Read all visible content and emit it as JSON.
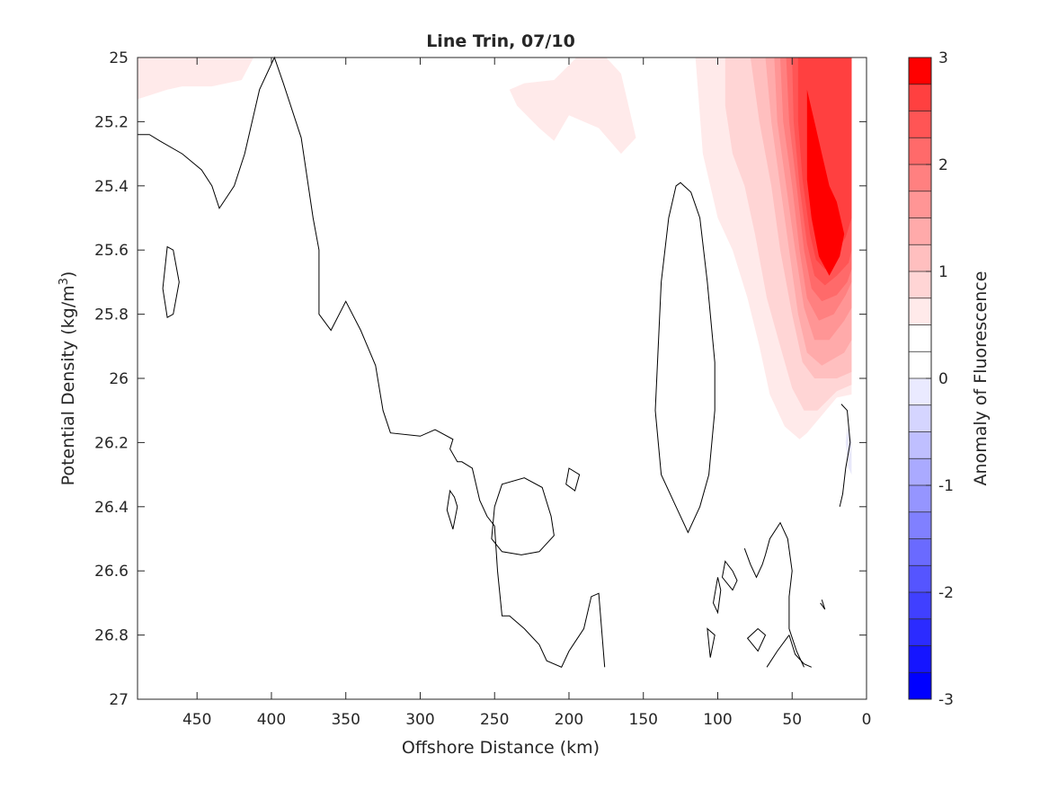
{
  "chart_data": {
    "type": "contour",
    "title": "Line Trin, 07/10",
    "xlabel": "Offshore Distance (km)",
    "ylabel_main": "Potential Density (kg/m",
    "ylabel_sup": "3",
    "ylabel_close": ")",
    "colorbar_label": "Anomaly of Fluorescence",
    "x_reversed": true,
    "y_reversed": true,
    "xlim": [
      490,
      0
    ],
    "ylim": [
      25,
      27
    ],
    "xticks": [
      450,
      400,
      350,
      300,
      250,
      200,
      150,
      100,
      50,
      0
    ],
    "xtick_labels": [
      "450",
      "400",
      "350",
      "300",
      "250",
      "200",
      "150",
      "100",
      "50",
      "0"
    ],
    "yticks": [
      25,
      25.2,
      25.4,
      25.6,
      25.8,
      26,
      26.2,
      26.4,
      26.6,
      26.8,
      27
    ],
    "ytick_labels": [
      "25",
      "25.2",
      "25.4",
      "25.6",
      "25.8",
      "26",
      "26.2",
      "26.4",
      "26.6",
      "26.8",
      "27"
    ],
    "colorbar": {
      "range": [
        -3,
        3
      ],
      "ticks": [
        -3,
        -2,
        -1,
        0,
        1,
        2,
        3
      ],
      "tick_labels": [
        "-3",
        "-2",
        "-1",
        "0",
        "1",
        "2",
        "3"
      ],
      "levels": 24,
      "colors": [
        "#0000ff",
        "#1515ff",
        "#2b2bff",
        "#4040ff",
        "#5555ff",
        "#6a6aff",
        "#8080ff",
        "#9595ff",
        "#aaaaff",
        "#bfbfff",
        "#d5d5ff",
        "#eaeaff",
        "#ffffff",
        "#ffffff",
        "#ffeaea",
        "#ffd5d5",
        "#ffbfbf",
        "#ffaaaa",
        "#ff9595",
        "#ff8080",
        "#ff6a6a",
        "#ff5555",
        "#ff4040",
        "#ff0000"
      ]
    },
    "filled_regions": [
      {
        "level": 0.25,
        "color": "#ffeaea",
        "points": [
          [
            490,
            25.13
          ],
          [
            470,
            25.1
          ],
          [
            460,
            25.09
          ],
          [
            440,
            25.09
          ],
          [
            420,
            25.07
          ],
          [
            412,
            25.0
          ],
          [
            490,
            25.0
          ]
        ]
      },
      {
        "level": 0.25,
        "color": "#ffeaea",
        "points": [
          [
            240,
            25.1
          ],
          [
            230,
            25.08
          ],
          [
            210,
            25.07
          ],
          [
            195,
            25.0
          ],
          [
            175,
            25.0
          ],
          [
            165,
            25.05
          ],
          [
            160,
            25.15
          ],
          [
            155,
            25.25
          ],
          [
            165,
            25.3
          ],
          [
            180,
            25.22
          ],
          [
            200,
            25.18
          ],
          [
            210,
            25.26
          ],
          [
            220,
            25.22
          ],
          [
            235,
            25.15
          ]
        ]
      },
      {
        "level": 0.25,
        "color": "#ffeaea",
        "points": [
          [
            115,
            25.0
          ],
          [
            110,
            25.3
          ],
          [
            100,
            25.5
          ],
          [
            90,
            25.6
          ],
          [
            80,
            25.75
          ],
          [
            72,
            25.9
          ],
          [
            65,
            26.05
          ],
          [
            55,
            26.15
          ],
          [
            45,
            26.19
          ],
          [
            40,
            26.17
          ],
          [
            20,
            26.06
          ],
          [
            10,
            26.05
          ],
          [
            10,
            25.0
          ]
        ]
      },
      {
        "level": 0.5,
        "color": "#ffd5d5",
        "points": [
          [
            95,
            25.0
          ],
          [
            95,
            25.15
          ],
          [
            90,
            25.3
          ],
          [
            82,
            25.4
          ],
          [
            75,
            25.55
          ],
          [
            67,
            25.75
          ],
          [
            58,
            25.9
          ],
          [
            50,
            26.03
          ],
          [
            42,
            26.1
          ],
          [
            33,
            26.1
          ],
          [
            20,
            26.04
          ],
          [
            10,
            26.02
          ],
          [
            10,
            25.0
          ]
        ]
      },
      {
        "level": 0.75,
        "color": "#ffbfbf",
        "points": [
          [
            78,
            25.0
          ],
          [
            72,
            25.2
          ],
          [
            64,
            25.4
          ],
          [
            58,
            25.6
          ],
          [
            50,
            25.8
          ],
          [
            43,
            25.95
          ],
          [
            35,
            26.0
          ],
          [
            20,
            26.0
          ],
          [
            10,
            25.98
          ],
          [
            10,
            25.0
          ]
        ]
      },
      {
        "level": 1.0,
        "color": "#ffaaaa",
        "points": [
          [
            68,
            25.0
          ],
          [
            64,
            25.2
          ],
          [
            58,
            25.4
          ],
          [
            52,
            25.6
          ],
          [
            46,
            25.8
          ],
          [
            40,
            25.92
          ],
          [
            30,
            25.96
          ],
          [
            15,
            25.92
          ],
          [
            10,
            25.88
          ],
          [
            10,
            25.0
          ]
        ]
      },
      {
        "level": 1.25,
        "color": "#ff9595",
        "points": [
          [
            62,
            25.0
          ],
          [
            60,
            25.2
          ],
          [
            54,
            25.4
          ],
          [
            48,
            25.6
          ],
          [
            42,
            25.78
          ],
          [
            35,
            25.88
          ],
          [
            25,
            25.88
          ],
          [
            15,
            25.82
          ],
          [
            10,
            25.78
          ],
          [
            10,
            25.0
          ]
        ]
      },
      {
        "level": 1.5,
        "color": "#ff8080",
        "points": [
          [
            58,
            25.0
          ],
          [
            56,
            25.2
          ],
          [
            50,
            25.4
          ],
          [
            45,
            25.6
          ],
          [
            40,
            25.75
          ],
          [
            32,
            25.82
          ],
          [
            22,
            25.8
          ],
          [
            14,
            25.74
          ],
          [
            10,
            25.7
          ],
          [
            10,
            25.0
          ]
        ]
      },
      {
        "level": 1.75,
        "color": "#ff6a6a",
        "points": [
          [
            54,
            25.0
          ],
          [
            52,
            25.2
          ],
          [
            47,
            25.4
          ],
          [
            42,
            25.6
          ],
          [
            37,
            25.72
          ],
          [
            30,
            25.76
          ],
          [
            20,
            25.74
          ],
          [
            13,
            25.7
          ],
          [
            10,
            25.66
          ],
          [
            10,
            25.0
          ]
        ]
      },
      {
        "level": 2.0,
        "color": "#ff5555",
        "points": [
          [
            50,
            25.0
          ],
          [
            49,
            25.2
          ],
          [
            45,
            25.4
          ],
          [
            40,
            25.58
          ],
          [
            35,
            25.68
          ],
          [
            28,
            25.71
          ],
          [
            20,
            25.68
          ],
          [
            12,
            25.64
          ],
          [
            10,
            25.6
          ],
          [
            10,
            25.0
          ]
        ]
      },
      {
        "level": 2.25,
        "color": "#ff4040",
        "points": [
          [
            46,
            25.0
          ],
          [
            46,
            25.2
          ],
          [
            43,
            25.38
          ],
          [
            38,
            25.55
          ],
          [
            34,
            25.63
          ],
          [
            28,
            25.66
          ],
          [
            22,
            25.62
          ],
          [
            14,
            25.56
          ],
          [
            10,
            25.5
          ],
          [
            10,
            25.0
          ]
        ]
      },
      {
        "level": 3.0,
        "color": "#ff0000",
        "points": [
          [
            40,
            25.1
          ],
          [
            35,
            25.2
          ],
          [
            30,
            25.3
          ],
          [
            25,
            25.4
          ],
          [
            20,
            25.45
          ],
          [
            15,
            25.55
          ],
          [
            18,
            25.62
          ],
          [
            25,
            25.68
          ],
          [
            32,
            25.62
          ],
          [
            37,
            25.5
          ],
          [
            40,
            25.38
          ]
        ]
      },
      {
        "level": -0.25,
        "color": "#e8e8fa",
        "points": [
          [
            13,
            26.15
          ],
          [
            10,
            26.2
          ],
          [
            10,
            26.3
          ],
          [
            12,
            26.28
          ],
          [
            14,
            26.2
          ]
        ]
      }
    ],
    "zero_contours": [
      {
        "closed": false,
        "points": [
          [
            490,
            25.24
          ],
          [
            482,
            25.24
          ],
          [
            475,
            25.26
          ],
          [
            460,
            25.3
          ],
          [
            447,
            25.35
          ],
          [
            440,
            25.4
          ],
          [
            435,
            25.47
          ],
          [
            425,
            25.4
          ],
          [
            418,
            25.3
          ],
          [
            408,
            25.1
          ],
          [
            398,
            25.0
          ],
          [
            392,
            25.08
          ],
          [
            380,
            25.25
          ],
          [
            372,
            25.5
          ],
          [
            368,
            25.6
          ],
          [
            368,
            25.8
          ],
          [
            360,
            25.85
          ],
          [
            350,
            25.76
          ],
          [
            340,
            25.85
          ],
          [
            330,
            25.96
          ],
          [
            325,
            26.1
          ],
          [
            320,
            26.17
          ],
          [
            300,
            26.18
          ],
          [
            290,
            26.16
          ],
          [
            278,
            26.19
          ],
          [
            280,
            26.22
          ],
          [
            275,
            26.26
          ],
          [
            272,
            26.26
          ],
          [
            265,
            26.28
          ],
          [
            260,
            26.38
          ],
          [
            255,
            26.43
          ],
          [
            250,
            26.46
          ],
          [
            248,
            26.6
          ],
          [
            245,
            26.74
          ],
          [
            240,
            26.74
          ],
          [
            230,
            26.78
          ],
          [
            220,
            26.83
          ],
          [
            215,
            26.88
          ],
          [
            205,
            26.9
          ],
          [
            200,
            26.85
          ],
          [
            190,
            26.78
          ],
          [
            185,
            26.68
          ],
          [
            180,
            26.67
          ],
          [
            176,
            26.9
          ]
        ]
      },
      {
        "closed": true,
        "points": [
          [
            470,
            25.59
          ],
          [
            466,
            25.6
          ],
          [
            462,
            25.7
          ],
          [
            466,
            25.8
          ],
          [
            470,
            25.81
          ],
          [
            473,
            25.72
          ]
        ]
      },
      {
        "closed": true,
        "points": [
          [
            280,
            26.35
          ],
          [
            277,
            26.37
          ],
          [
            275,
            26.4
          ],
          [
            278,
            26.47
          ],
          [
            282,
            26.41
          ]
        ]
      },
      {
        "closed": true,
        "points": [
          [
            245,
            26.33
          ],
          [
            250,
            26.4
          ],
          [
            252,
            26.5
          ],
          [
            245,
            26.54
          ],
          [
            232,
            26.55
          ],
          [
            220,
            26.54
          ],
          [
            210,
            26.49
          ],
          [
            212,
            26.43
          ],
          [
            218,
            26.34
          ],
          [
            230,
            26.31
          ]
        ]
      },
      {
        "closed": true,
        "points": [
          [
            200,
            26.28
          ],
          [
            193,
            26.3
          ],
          [
            196,
            26.35
          ],
          [
            202,
            26.33
          ]
        ]
      },
      {
        "closed": true,
        "points": [
          [
            125,
            25.39
          ],
          [
            118,
            25.42
          ],
          [
            112,
            25.5
          ],
          [
            107,
            25.7
          ],
          [
            102,
            25.95
          ],
          [
            102,
            26.1
          ],
          [
            106,
            26.3
          ],
          [
            112,
            26.4
          ],
          [
            120,
            26.48
          ],
          [
            128,
            26.4
          ],
          [
            138,
            26.3
          ],
          [
            142,
            26.1
          ],
          [
            140,
            25.9
          ],
          [
            138,
            25.7
          ],
          [
            133,
            25.5
          ],
          [
            128,
            25.4
          ]
        ]
      },
      {
        "closed": false,
        "points": [
          [
            42,
            26.9
          ],
          [
            47,
            26.85
          ],
          [
            52,
            26.78
          ],
          [
            52,
            26.68
          ],
          [
            50,
            26.6
          ],
          [
            53,
            26.5
          ],
          [
            58,
            26.45
          ],
          [
            65,
            26.5
          ],
          [
            68,
            26.55
          ],
          [
            70,
            26.58
          ],
          [
            74,
            26.62
          ],
          [
            78,
            26.58
          ],
          [
            82,
            26.53
          ]
        ]
      },
      {
        "closed": true,
        "points": [
          [
            95,
            26.57
          ],
          [
            90,
            26.6
          ],
          [
            87,
            26.63
          ],
          [
            90,
            26.66
          ],
          [
            97,
            26.62
          ]
        ]
      },
      {
        "closed": true,
        "points": [
          [
            100,
            26.62
          ],
          [
            103,
            26.7
          ],
          [
            100,
            26.73
          ],
          [
            98,
            26.66
          ]
        ]
      },
      {
        "closed": true,
        "points": [
          [
            73,
            26.78
          ],
          [
            80,
            26.81
          ],
          [
            73,
            26.85
          ],
          [
            68,
            26.8
          ]
        ]
      },
      {
        "closed": true,
        "points": [
          [
            107,
            26.78
          ],
          [
            105,
            26.87
          ],
          [
            102,
            26.8
          ]
        ]
      },
      {
        "closed": false,
        "points": [
          [
            31,
            26.7
          ],
          [
            28,
            26.72
          ],
          [
            30,
            26.69
          ]
        ]
      },
      {
        "closed": false,
        "points": [
          [
            52,
            26.8
          ],
          [
            60,
            26.85
          ],
          [
            67,
            26.9
          ]
        ]
      },
      {
        "closed": false,
        "points": [
          [
            52,
            26.8
          ],
          [
            48,
            26.86
          ],
          [
            42,
            26.89
          ],
          [
            37,
            26.9
          ]
        ]
      },
      {
        "closed": false,
        "points": [
          [
            17,
            26.08
          ],
          [
            13,
            26.1
          ],
          [
            11,
            26.2
          ],
          [
            14,
            26.28
          ],
          [
            16,
            26.36
          ],
          [
            18,
            26.4
          ]
        ]
      }
    ]
  }
}
